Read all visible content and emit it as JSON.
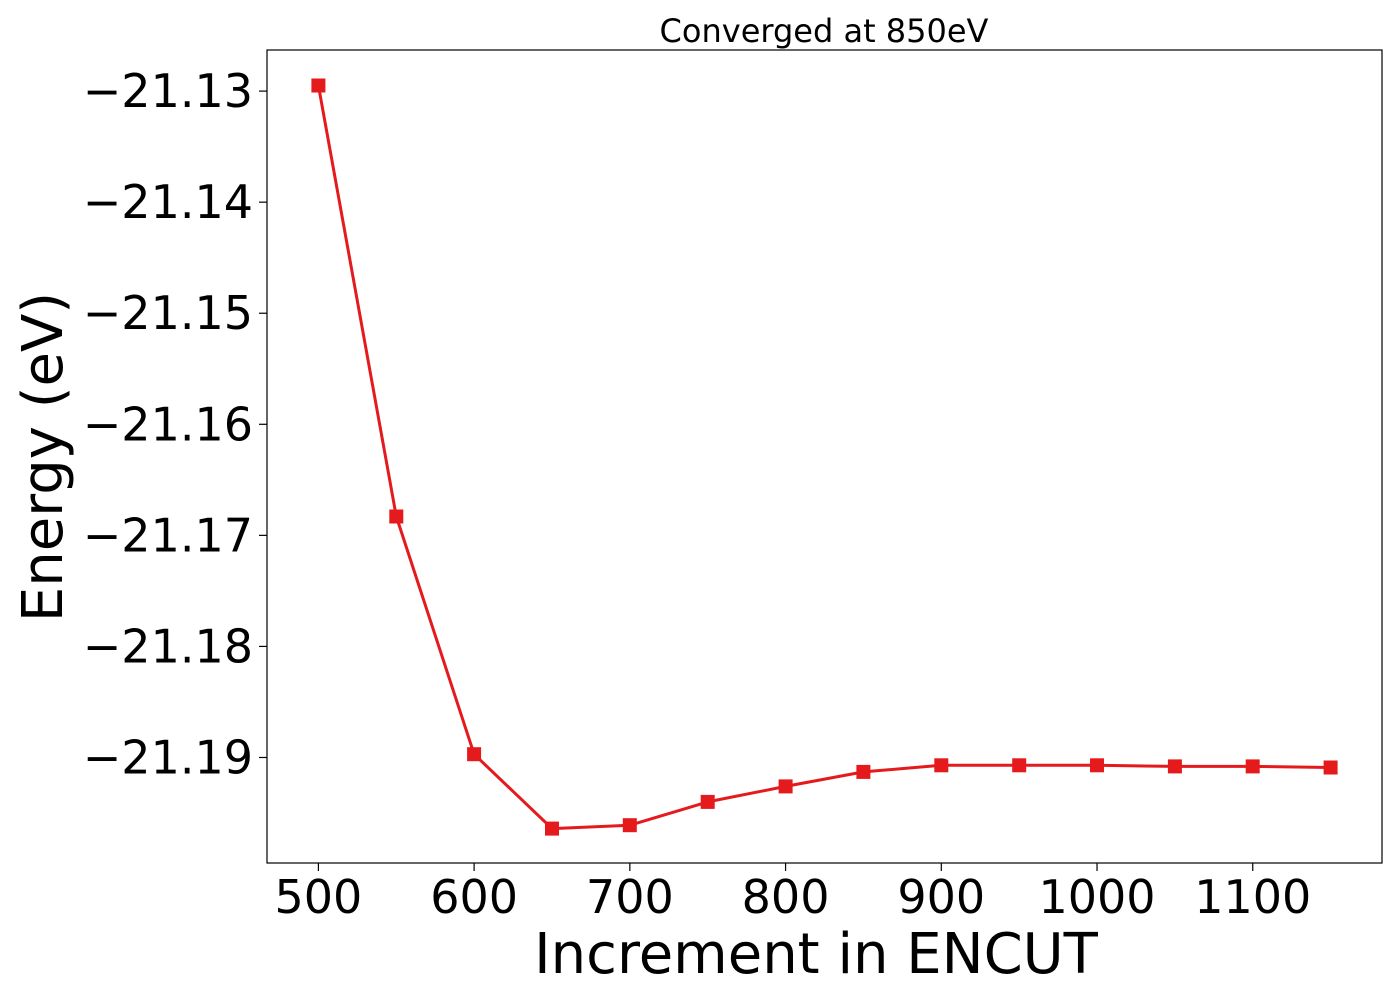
{
  "chart_data": {
    "type": "line",
    "title": "Converged at 850eV",
    "xlabel": "Increment in ENCUT",
    "ylabel": "Energy (eV)",
    "x": [
      500,
      550,
      600,
      650,
      700,
      750,
      800,
      850,
      900,
      950,
      1000,
      1050,
      1100,
      1150
    ],
    "series": [
      {
        "values": [
          -21.1295,
          -21.1683,
          -21.1897,
          -21.1964,
          -21.1961,
          -21.194,
          -21.1926,
          -21.1913,
          -21.1907,
          -21.1907,
          -21.1907,
          -21.1908,
          -21.1908,
          -21.1909
        ],
        "color": "#e41a1c",
        "marker": "square"
      }
    ],
    "xlim": [
      467,
      1183
    ],
    "ylim": [
      -21.1995,
      -21.1263
    ],
    "x_ticks": [
      500,
      600,
      700,
      800,
      900,
      1000,
      1100
    ],
    "y_ticks": [
      -21.13,
      -21.14,
      -21.15,
      -21.16,
      -21.17,
      -21.18,
      -21.19
    ],
    "x_tick_labels": [
      "500",
      "600",
      "700",
      "800",
      "900",
      "1000",
      "1100"
    ],
    "y_tick_labels": [
      "−21.13",
      "−21.14",
      "−21.15",
      "−21.16",
      "−21.17",
      "−21.18",
      "−21.19"
    ],
    "grid": false,
    "legend": "none"
  }
}
